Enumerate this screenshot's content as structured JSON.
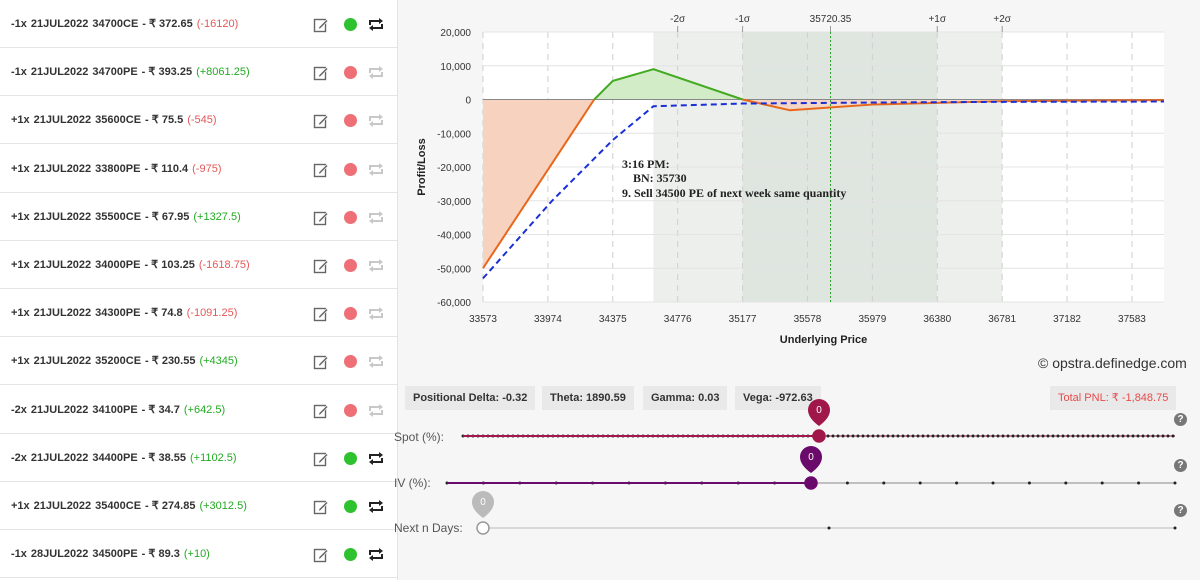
{
  "positions": [
    {
      "qty": "-1x",
      "expiry": "21JUL2022",
      "strike": "34700CE",
      "price": "- ₹ 372.65",
      "pnl": "(-16120)",
      "pnl_sign": "neg",
      "active": true
    },
    {
      "qty": "-1x",
      "expiry": "21JUL2022",
      "strike": "34700PE",
      "price": "- ₹ 393.25",
      "pnl": "(+8061.25)",
      "pnl_sign": "pos",
      "active": false
    },
    {
      "qty": "+1x",
      "expiry": "21JUL2022",
      "strike": "35600CE",
      "price": "- ₹ 75.5",
      "pnl": "(-545)",
      "pnl_sign": "neg",
      "active": false
    },
    {
      "qty": "+1x",
      "expiry": "21JUL2022",
      "strike": "33800PE",
      "price": "- ₹ 110.4",
      "pnl": "(-975)",
      "pnl_sign": "neg",
      "active": false
    },
    {
      "qty": "+1x",
      "expiry": "21JUL2022",
      "strike": "35500CE",
      "price": "- ₹ 67.95",
      "pnl": "(+1327.5)",
      "pnl_sign": "pos",
      "active": false
    },
    {
      "qty": "+1x",
      "expiry": "21JUL2022",
      "strike": "34000PE",
      "price": "- ₹ 103.25",
      "pnl": "(-1618.75)",
      "pnl_sign": "neg",
      "active": false
    },
    {
      "qty": "+1x",
      "expiry": "21JUL2022",
      "strike": "34300PE",
      "price": "- ₹ 74.8",
      "pnl": "(-1091.25)",
      "pnl_sign": "neg",
      "active": false
    },
    {
      "qty": "+1x",
      "expiry": "21JUL2022",
      "strike": "35200CE",
      "price": "- ₹ 230.55",
      "pnl": "(+4345)",
      "pnl_sign": "pos",
      "active": false
    },
    {
      "qty": "-2x",
      "expiry": "21JUL2022",
      "strike": "34100PE",
      "price": "- ₹ 34.7",
      "pnl": "(+642.5)",
      "pnl_sign": "pos",
      "active": false
    },
    {
      "qty": "-2x",
      "expiry": "21JUL2022",
      "strike": "34400PE",
      "price": "- ₹ 38.55",
      "pnl": "(+1102.5)",
      "pnl_sign": "pos",
      "active": true
    },
    {
      "qty": "+1x",
      "expiry": "21JUL2022",
      "strike": "35400CE",
      "price": "- ₹ 274.85",
      "pnl": "(+3012.5)",
      "pnl_sign": "pos",
      "active": true
    },
    {
      "qty": "-1x",
      "expiry": "28JUL2022",
      "strike": "34500PE",
      "price": "- ₹ 89.3",
      "pnl": "(+10)",
      "pnl_sign": "pos",
      "active": true
    }
  ],
  "chart_data": {
    "type": "line",
    "xlabel": "Underlying Price",
    "ylabel": "Profit/Loss",
    "xlim": [
      33573,
      37781
    ],
    "ylim": [
      -60000,
      20000
    ],
    "x_ticks": [
      33573,
      33974,
      34375,
      34776,
      35177,
      35578,
      35979,
      36380,
      36781,
      37182,
      37583
    ],
    "y_ticks": [
      20000,
      10000,
      0,
      -10000,
      -20000,
      -30000,
      -40000,
      -50000,
      -60000
    ],
    "y_tick_labels": [
      "20,000",
      "10,000",
      "0",
      "-10,000",
      "-20,000",
      "-30,000",
      "-40,000",
      "-50,000",
      "-60,000"
    ],
    "top_markers": [
      {
        "label": "-2σ",
        "x": 34776
      },
      {
        "label": "-1σ",
        "x": 35177
      },
      {
        "label": "35720.35",
        "x": 35720.35
      },
      {
        "label": "+1σ",
        "x": 36380
      },
      {
        "label": "+2σ",
        "x": 36781
      }
    ],
    "spot": 35720.35,
    "sigma_bands": {
      "two_sigma": [
        34776,
        36781
      ],
      "one_sigma": [
        35177,
        36380
      ]
    },
    "series": [
      {
        "points": [
          [
            33573,
            -50000
          ],
          [
            34375,
            5500
          ],
          [
            34626,
            9000
          ],
          [
            35177,
            0
          ],
          [
            35470,
            -3200
          ],
          [
            35979,
            -1500
          ],
          [
            36781,
            -500
          ],
          [
            37781,
            -200
          ]
        ]
      },
      {
        "points": [
          [
            33573,
            -53000
          ],
          [
            34000,
            -30000
          ],
          [
            34375,
            -12000
          ],
          [
            34626,
            -2000
          ],
          [
            35177,
            -1200
          ],
          [
            35979,
            -900
          ],
          [
            36781,
            -700
          ],
          [
            37781,
            -600
          ]
        ]
      }
    ],
    "colors": {
      "expiry": "#e8671a",
      "expiry_profit": "#44aa22",
      "target": "#1a2fd4",
      "loss_fill": "#f7d2bf",
      "profit_fill": "#d3ecc8",
      "band_outer": "#ecefec",
      "band_inner": "#dfe5df",
      "spot_line": "#2aa02a"
    },
    "annotation": [
      "3:16 PM:",
      "BN: 35730",
      "9. Sell 34500 PE of next week same quantity"
    ]
  },
  "credit": "© opstra.definedge.com",
  "greeks": {
    "delta": "Positional Delta: -0.32",
    "theta": "Theta: 1890.59",
    "gamma": "Gamma: 0.03",
    "vega": "Vega: -972.63"
  },
  "total_pnl": "Total PNL: ₹ -1,848.75",
  "sliders": {
    "spot": {
      "label": "Spot (%):",
      "value": "0",
      "level": 0.5
    },
    "iv": {
      "label": "IV (%):",
      "value": "0",
      "level": 0.5
    },
    "days": {
      "label": "Next n Days:",
      "value": "0",
      "level": 0.0
    }
  },
  "help_glyph": "?",
  "icons": {
    "edit": "edit-icon",
    "toggle": "repeat-icon",
    "help": "help-icon"
  }
}
